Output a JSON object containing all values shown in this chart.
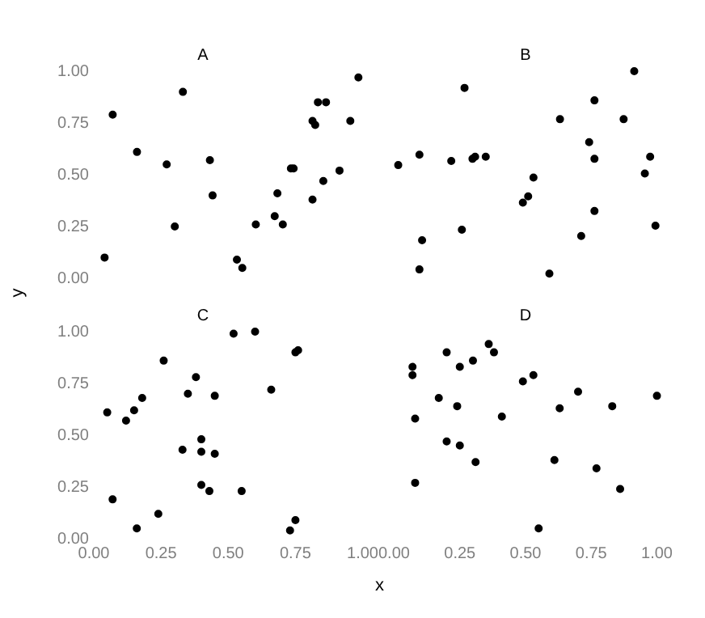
{
  "chart_data": [
    {
      "type": "scatter",
      "title": "A",
      "color": "#000000",
      "marker": "circle",
      "tick_labels": "y",
      "xlim": [
        0,
        1
      ],
      "ylim": [
        0,
        1
      ],
      "yticks": [
        {
          "value": 0,
          "label": "0.00"
        },
        {
          "value": 0.25,
          "label": "0.25"
        },
        {
          "value": 0.5,
          "label": "0.50"
        },
        {
          "value": 0.75,
          "label": "0.75"
        },
        {
          "value": 1,
          "label": "1.00"
        }
      ],
      "x": [
        0.98,
        0.33,
        0.07,
        0.83,
        0.86,
        0.81,
        0.82,
        0.95,
        0.16,
        0.27,
        0.43,
        0.73,
        0.74,
        0.91,
        0.85,
        0.44,
        0.68,
        0.81,
        0.67,
        0.6,
        0.7,
        0.3,
        0.04,
        0.53,
        0.55
      ],
      "values": [
        0.97,
        0.9,
        0.79,
        0.85,
        0.85,
        0.76,
        0.74,
        0.76,
        0.61,
        0.55,
        0.57,
        0.53,
        0.53,
        0.52,
        0.47,
        0.4,
        0.41,
        0.38,
        0.3,
        0.26,
        0.26,
        0.25,
        0.1,
        0.09,
        0.05
      ]
    },
    {
      "type": "scatter",
      "title": "B",
      "color": "#000000",
      "marker": "circle",
      "tick_labels": false,
      "xlim": [
        0,
        1
      ],
      "ylim": [
        0,
        1
      ],
      "x": [
        0.91,
        0.27,
        0.76,
        0.63,
        0.87,
        0.74,
        0.1,
        0.02,
        0.22,
        0.3,
        0.31,
        0.35,
        0.76,
        0.97,
        0.95,
        0.53,
        0.51,
        0.49,
        0.76,
        0.99,
        0.26,
        0.71,
        0.11,
        0.1,
        0.59
      ],
      "values": [
        1.0,
        0.92,
        0.86,
        0.77,
        0.77,
        0.66,
        0.6,
        0.55,
        0.57,
        0.58,
        0.59,
        0.59,
        0.58,
        0.59,
        0.51,
        0.49,
        0.4,
        0.37,
        0.33,
        0.26,
        0.24,
        0.21,
        0.19,
        0.05,
        0.03
      ]
    },
    {
      "type": "scatter",
      "title": "C",
      "xlabel": "x",
      "ylabel": "y",
      "color": "#000000",
      "marker": "circle",
      "xlim": [
        0,
        1
      ],
      "ylim": [
        0,
        1
      ],
      "xticks": [
        {
          "value": 0,
          "label": "0.00"
        },
        {
          "value": 0.25,
          "label": "0.25"
        },
        {
          "value": 0.5,
          "label": "0.50"
        },
        {
          "value": 0.75,
          "label": "0.75"
        },
        {
          "value": 1,
          "label": "1.00"
        }
      ],
      "yticks": [
        {
          "value": 0,
          "label": "0.00"
        },
        {
          "value": 0.25,
          "label": "0.25"
        },
        {
          "value": 0.5,
          "label": "0.50"
        },
        {
          "value": 0.75,
          "label": "0.75"
        },
        {
          "value": 1,
          "label": "1.00"
        }
      ],
      "x": [
        0.52,
        0.6,
        0.75,
        0.76,
        0.26,
        0.38,
        0.66,
        0.35,
        0.45,
        0.18,
        0.15,
        0.05,
        0.12,
        0.4,
        0.33,
        0.4,
        0.45,
        0.4,
        0.43,
        0.55,
        0.07,
        0.24,
        0.75,
        0.16,
        0.73
      ],
      "values": [
        0.99,
        1.0,
        0.9,
        0.91,
        0.86,
        0.78,
        0.72,
        0.7,
        0.69,
        0.68,
        0.62,
        0.61,
        0.57,
        0.48,
        0.43,
        0.42,
        0.41,
        0.26,
        0.23,
        0.23,
        0.19,
        0.12,
        0.09,
        0.05,
        0.04
      ]
    },
    {
      "type": "scatter",
      "title": "D",
      "color": "#000000",
      "marker": "circle",
      "tick_labels": "x",
      "xlim": [
        0,
        1
      ],
      "ylim": [
        0,
        1
      ],
      "xticks": [
        {
          "value": 0,
          "label": "0.00"
        },
        {
          "value": 0.25,
          "label": "0.25"
        },
        {
          "value": 0.5,
          "label": "0.50"
        },
        {
          "value": 0.75,
          "label": "0.75"
        },
        {
          "value": 1,
          "label": "1.00"
        }
      ],
      "x": [
        0.36,
        0.2,
        0.38,
        0.3,
        0.07,
        0.25,
        0.07,
        0.53,
        0.49,
        0.7,
        1.0,
        0.17,
        0.24,
        0.63,
        0.83,
        0.41,
        0.08,
        0.2,
        0.25,
        0.61,
        0.31,
        0.77,
        0.08,
        0.86,
        0.55
      ],
      "values": [
        0.94,
        0.9,
        0.9,
        0.86,
        0.83,
        0.83,
        0.79,
        0.79,
        0.76,
        0.71,
        0.69,
        0.68,
        0.64,
        0.63,
        0.64,
        0.59,
        0.58,
        0.47,
        0.45,
        0.38,
        0.37,
        0.34,
        0.27,
        0.24,
        0.05
      ]
    }
  ]
}
